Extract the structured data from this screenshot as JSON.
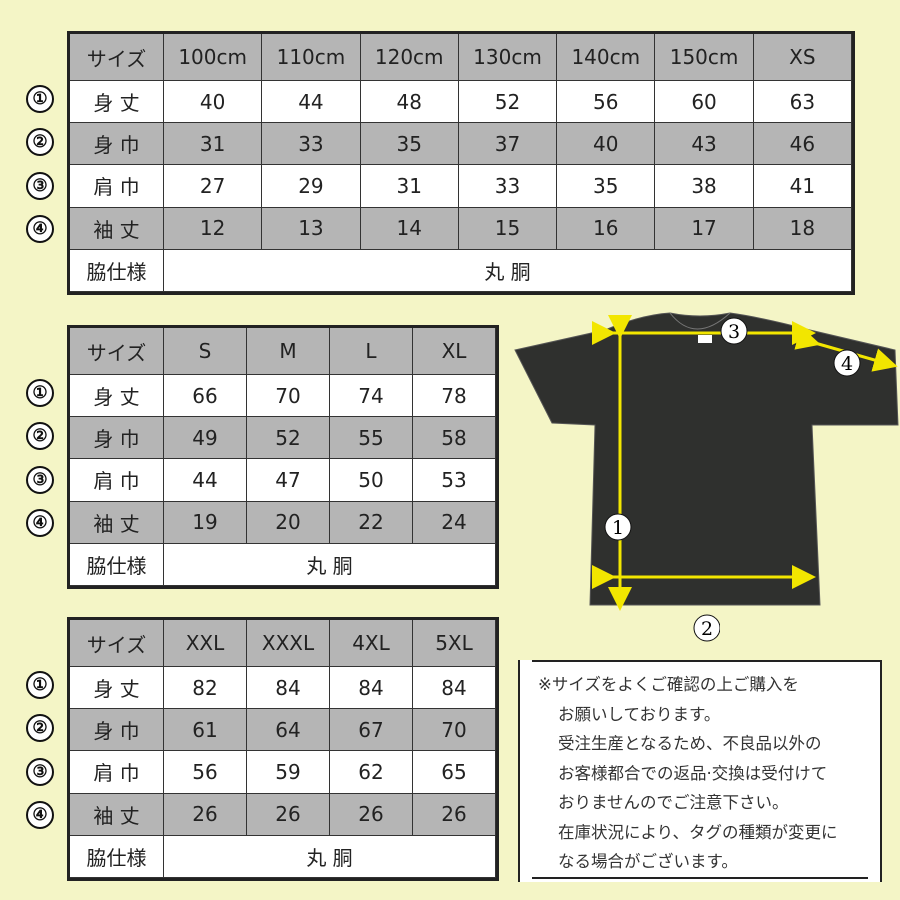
{
  "row_markers": [
    "①",
    "②",
    "③",
    "④"
  ],
  "tables": [
    {
      "header": [
        "サイズ",
        "100cm",
        "110cm",
        "120cm",
        "130cm",
        "140cm",
        "150cm",
        "XS"
      ],
      "rows": [
        {
          "label": "身 丈",
          "values": [
            "40",
            "44",
            "48",
            "52",
            "56",
            "60",
            "63"
          ]
        },
        {
          "label": "身 巾",
          "values": [
            "31",
            "33",
            "35",
            "37",
            "40",
            "43",
            "46"
          ]
        },
        {
          "label": "肩 巾",
          "values": [
            "27",
            "29",
            "31",
            "33",
            "35",
            "38",
            "41"
          ]
        },
        {
          "label": "袖 丈",
          "values": [
            "12",
            "13",
            "14",
            "15",
            "16",
            "17",
            "18"
          ]
        }
      ],
      "footer": {
        "label": "脇仕様",
        "value": "丸 胴"
      }
    },
    {
      "header": [
        "サイズ",
        "S",
        "M",
        "L",
        "XL"
      ],
      "rows": [
        {
          "label": "身 丈",
          "values": [
            "66",
            "70",
            "74",
            "78"
          ]
        },
        {
          "label": "身 巾",
          "values": [
            "49",
            "52",
            "55",
            "58"
          ]
        },
        {
          "label": "肩 巾",
          "values": [
            "44",
            "47",
            "50",
            "53"
          ]
        },
        {
          "label": "袖 丈",
          "values": [
            "19",
            "20",
            "22",
            "24"
          ]
        }
      ],
      "footer": {
        "label": "脇仕様",
        "value": "丸 胴"
      }
    },
    {
      "header": [
        "サイズ",
        "XXL",
        "XXXL",
        "4XL",
        "5XL"
      ],
      "rows": [
        {
          "label": "身 丈",
          "values": [
            "82",
            "84",
            "84",
            "84"
          ]
        },
        {
          "label": "身 巾",
          "values": [
            "61",
            "64",
            "67",
            "70"
          ]
        },
        {
          "label": "肩 巾",
          "values": [
            "56",
            "59",
            "62",
            "65"
          ]
        },
        {
          "label": "袖 丈",
          "values": [
            "26",
            "26",
            "26",
            "26"
          ]
        }
      ],
      "footer": {
        "label": "脇仕様",
        "value": "丸 胴"
      }
    }
  ],
  "diagram": {
    "labels": [
      "1",
      "2",
      "3",
      "4"
    ],
    "shirt_color": "#2f302e",
    "arrow_color": "#f2e600"
  },
  "notice": [
    "※サイズをよくご確認の上ご購入を",
    "お願いしております。",
    "受注生産となるため、不良品以外の",
    "お客様都合での返品·交換は受付けて",
    "おりませんのでご注意下さい。",
    "在庫状況により、タグの種類が変更に",
    "なる場合がございます。"
  ]
}
